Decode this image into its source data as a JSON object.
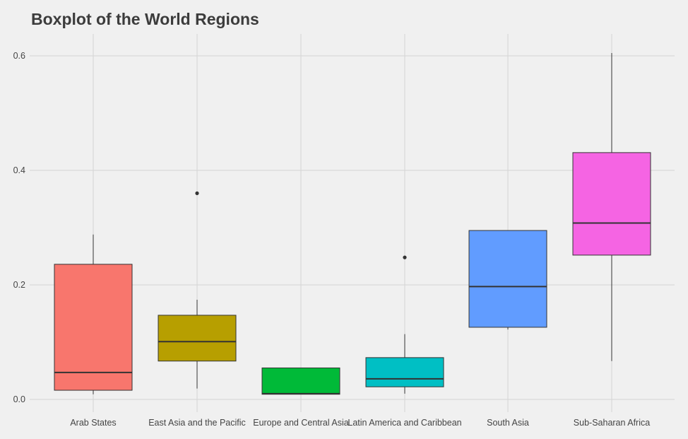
{
  "chart_data": {
    "type": "boxplot",
    "title": "Boxplot of the World Regions",
    "xlabel": "",
    "ylabel": "",
    "ylim": [
      -0.01,
      0.61
    ],
    "yticks": [
      0.0,
      0.2,
      0.4,
      0.6
    ],
    "ytick_labels": [
      "0.0",
      "0.2",
      "0.4",
      "0.6"
    ],
    "grid": true,
    "legend": "none",
    "categories": [
      "Arab States",
      "East Asia and the Pacific",
      "Europe and Central Asia",
      "Latin America and Caribbean",
      "South Asia",
      "Sub-Saharan Africa"
    ],
    "boxes": [
      {
        "category": "Arab States",
        "whisker_low": 0.009,
        "q1": 0.016,
        "median": 0.047,
        "q3": 0.236,
        "whisker_high": 0.288,
        "outliers": [],
        "color": "#F8766D"
      },
      {
        "category": "East Asia and the Pacific",
        "whisker_low": 0.019,
        "q1": 0.067,
        "median": 0.101,
        "q3": 0.147,
        "whisker_high": 0.174,
        "outliers": [
          0.36
        ],
        "color": "#B79F00"
      },
      {
        "category": "Europe and Central Asia",
        "whisker_low": 0.009,
        "q1": 0.009,
        "median": 0.01,
        "q3": 0.055,
        "whisker_high": 0.055,
        "outliers": [],
        "color": "#00BA38"
      },
      {
        "category": "Latin America and Caribbean",
        "whisker_low": 0.01,
        "q1": 0.022,
        "median": 0.036,
        "q3": 0.073,
        "whisker_high": 0.114,
        "outliers": [
          0.248
        ],
        "color": "#00BFC4"
      },
      {
        "category": "South Asia",
        "whisker_low": 0.122,
        "q1": 0.126,
        "median": 0.197,
        "q3": 0.295,
        "whisker_high": 0.295,
        "outliers": [],
        "color": "#619CFF"
      },
      {
        "category": "Sub-Saharan Africa",
        "whisker_low": 0.067,
        "q1": 0.252,
        "median": 0.308,
        "q3": 0.431,
        "whisker_high": 0.605,
        "outliers": [],
        "color": "#F564E3"
      }
    ],
    "colors": {
      "background": "#f0f0f0",
      "grid": "#d4d4d4",
      "box_outline": "#333333",
      "median_line": "#333333",
      "text": "#444444",
      "title": "#3c3c3c"
    }
  }
}
